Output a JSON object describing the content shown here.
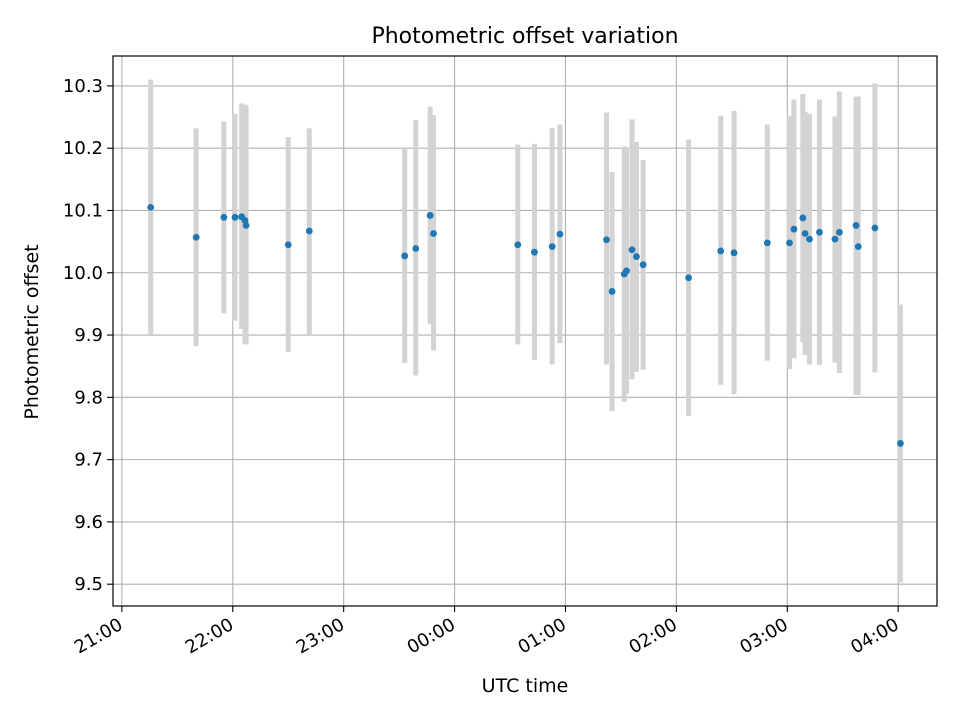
{
  "chart_data": {
    "type": "scatter",
    "title": "Photometric offset variation",
    "xlabel": "UTC time",
    "ylabel": "Photometric offset",
    "x_ticks": [
      "21:00",
      "22:00",
      "23:00",
      "00:00",
      "01:00",
      "02:00",
      "03:00",
      "04:00"
    ],
    "x_tick_hours": [
      0,
      1,
      2,
      3,
      4,
      5,
      6,
      7
    ],
    "x_origin_label": "21:00",
    "xlim": [
      -0.08,
      7.35
    ],
    "y_ticks": [
      "9.5",
      "9.6",
      "9.7",
      "9.8",
      "9.9",
      "10.0",
      "10.1",
      "10.2",
      "10.3"
    ],
    "y_tick_values": [
      9.5,
      9.6,
      9.7,
      9.8,
      9.9,
      10.0,
      10.1,
      10.2,
      10.3
    ],
    "ylim": [
      9.465,
      10.348
    ],
    "grid": true,
    "point_color": "#1f77b4",
    "errorbar_color": "#d3d3d3",
    "series": [
      {
        "points": [
          {
            "x": 0.26,
            "y": 10.105,
            "lo": 9.9,
            "hi": 10.31
          },
          {
            "x": 0.67,
            "y": 10.057,
            "lo": 9.882,
            "hi": 10.232
          },
          {
            "x": 0.92,
            "y": 10.089,
            "lo": 9.935,
            "hi": 10.243
          },
          {
            "x": 1.02,
            "y": 10.089,
            "lo": 9.923,
            "hi": 10.255
          },
          {
            "x": 1.08,
            "y": 10.09,
            "lo": 9.91,
            "hi": 10.272
          },
          {
            "x": 1.11,
            "y": 10.084,
            "lo": 9.885,
            "hi": 10.27
          },
          {
            "x": 1.12,
            "y": 10.076,
            "lo": 9.885,
            "hi": 10.268
          },
          {
            "x": 1.5,
            "y": 10.045,
            "lo": 9.873,
            "hi": 10.218
          },
          {
            "x": 1.69,
            "y": 10.067,
            "lo": 9.9,
            "hi": 10.232
          },
          {
            "x": 2.55,
            "y": 10.027,
            "lo": 9.855,
            "hi": 10.2
          },
          {
            "x": 2.65,
            "y": 10.039,
            "lo": 9.835,
            "hi": 10.245
          },
          {
            "x": 2.78,
            "y": 10.092,
            "lo": 9.918,
            "hi": 10.267
          },
          {
            "x": 2.81,
            "y": 10.063,
            "lo": 9.875,
            "hi": 10.253
          },
          {
            "x": 3.57,
            "y": 10.045,
            "lo": 9.885,
            "hi": 10.206
          },
          {
            "x": 3.72,
            "y": 10.033,
            "lo": 9.86,
            "hi": 10.207
          },
          {
            "x": 3.88,
            "y": 10.042,
            "lo": 9.853,
            "hi": 10.232
          },
          {
            "x": 3.95,
            "y": 10.062,
            "lo": 9.887,
            "hi": 10.238
          },
          {
            "x": 4.37,
            "y": 10.053,
            "lo": 9.853,
            "hi": 10.257
          },
          {
            "x": 4.42,
            "y": 9.97,
            "lo": 9.778,
            "hi": 10.162
          },
          {
            "x": 4.53,
            "y": 9.998,
            "lo": 9.793,
            "hi": 10.203
          },
          {
            "x": 4.55,
            "y": 10.003,
            "lo": 9.806,
            "hi": 10.2
          },
          {
            "x": 4.6,
            "y": 10.037,
            "lo": 9.829,
            "hi": 10.246
          },
          {
            "x": 4.64,
            "y": 10.026,
            "lo": 9.841,
            "hi": 10.21
          },
          {
            "x": 4.7,
            "y": 10.013,
            "lo": 9.844,
            "hi": 10.181
          },
          {
            "x": 5.11,
            "y": 9.992,
            "lo": 9.77,
            "hi": 10.214
          },
          {
            "x": 5.4,
            "y": 10.035,
            "lo": 9.82,
            "hi": 10.252
          },
          {
            "x": 5.52,
            "y": 10.032,
            "lo": 9.805,
            "hi": 10.26
          },
          {
            "x": 5.82,
            "y": 10.048,
            "lo": 9.859,
            "hi": 10.238
          },
          {
            "x": 6.02,
            "y": 10.048,
            "lo": 9.845,
            "hi": 10.252
          },
          {
            "x": 6.06,
            "y": 10.07,
            "lo": 9.863,
            "hi": 10.278
          },
          {
            "x": 6.14,
            "y": 10.088,
            "lo": 9.889,
            "hi": 10.287
          },
          {
            "x": 6.16,
            "y": 10.063,
            "lo": 9.868,
            "hi": 10.258
          },
          {
            "x": 6.2,
            "y": 10.054,
            "lo": 9.853,
            "hi": 10.255
          },
          {
            "x": 6.29,
            "y": 10.065,
            "lo": 9.852,
            "hi": 10.278
          },
          {
            "x": 6.43,
            "y": 10.054,
            "lo": 9.856,
            "hi": 10.251
          },
          {
            "x": 6.47,
            "y": 10.065,
            "lo": 9.839,
            "hi": 10.291
          },
          {
            "x": 6.62,
            "y": 10.076,
            "lo": 9.804,
            "hi": 10.283
          },
          {
            "x": 6.64,
            "y": 10.042,
            "lo": 9.804,
            "hi": 10.283
          },
          {
            "x": 6.79,
            "y": 10.072,
            "lo": 9.84,
            "hi": 10.304
          },
          {
            "x": 7.02,
            "y": 9.726,
            "lo": 9.503,
            "hi": 9.949
          }
        ]
      }
    ]
  }
}
